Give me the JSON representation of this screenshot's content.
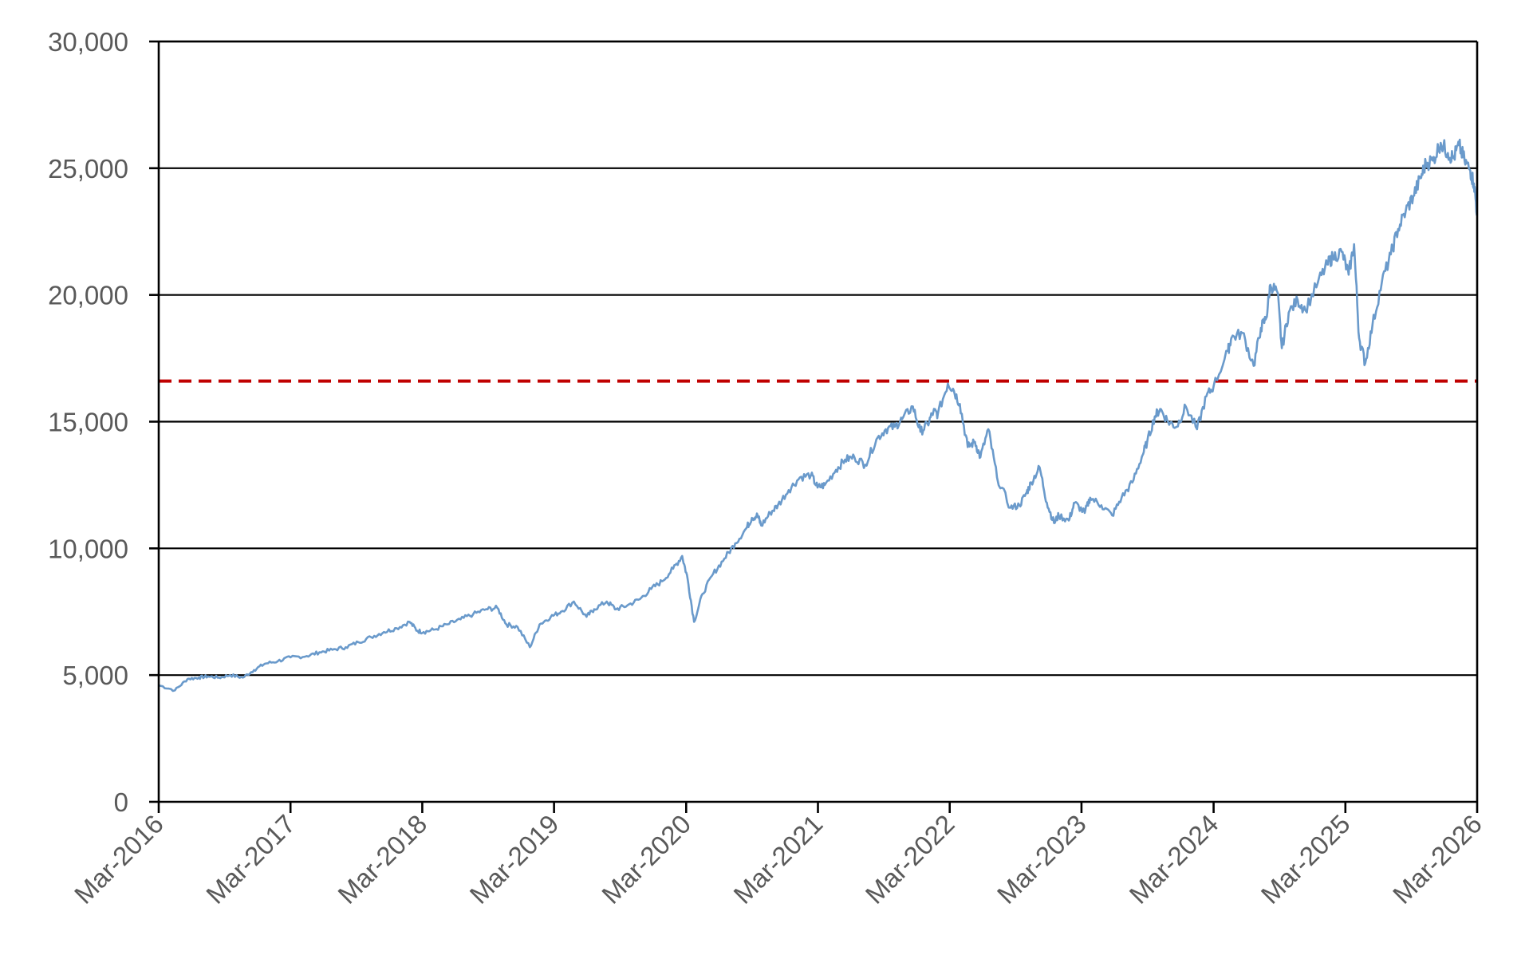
{
  "chart_data": {
    "type": "line",
    "title": "",
    "xlabel": "",
    "ylabel": "",
    "xlim": [
      "2016-03-01",
      "2026-03-01"
    ],
    "ylim": [
      0,
      30000
    ],
    "y_ticks": [
      {
        "value": 0,
        "label": "0"
      },
      {
        "value": 5000,
        "label": "5,000"
      },
      {
        "value": 10000,
        "label": "10,000"
      },
      {
        "value": 15000,
        "label": "15,000"
      },
      {
        "value": 20000,
        "label": "20,000"
      },
      {
        "value": 25000,
        "label": "25,000"
      },
      {
        "value": 30000,
        "label": "30,000"
      }
    ],
    "x_ticks": [
      {
        "value": "2016-03-01",
        "label": "Mar-2016"
      },
      {
        "value": "2017-03-01",
        "label": "Mar-2017"
      },
      {
        "value": "2018-03-01",
        "label": "Mar-2018"
      },
      {
        "value": "2019-03-01",
        "label": "Mar-2019"
      },
      {
        "value": "2020-03-01",
        "label": "Mar-2020"
      },
      {
        "value": "2021-03-01",
        "label": "Mar-2021"
      },
      {
        "value": "2022-03-01",
        "label": "Mar-2022"
      },
      {
        "value": "2023-03-01",
        "label": "Mar-2023"
      },
      {
        "value": "2024-03-01",
        "label": "Mar-2024"
      },
      {
        "value": "2025-03-01",
        "label": "Mar-2025"
      },
      {
        "value": "2026-03-01",
        "label": "Mar-2026"
      }
    ],
    "grid": true,
    "series": [
      {
        "color": "#6a9acb",
        "x": [
          "2016-03-01",
          "2016-04-15",
          "2016-05-20",
          "2016-06-20",
          "2016-07-15",
          "2016-08-15",
          "2016-09-15",
          "2016-10-20",
          "2016-11-20",
          "2016-12-20",
          "2017-01-25",
          "2017-03-01",
          "2017-04-15",
          "2017-05-20",
          "2017-06-25",
          "2017-08-01",
          "2017-09-05",
          "2017-10-10",
          "2017-11-15",
          "2017-12-20",
          "2018-01-25",
          "2018-02-15",
          "2018-03-05",
          "2018-04-05",
          "2018-05-10",
          "2018-06-15",
          "2018-07-20",
          "2018-08-25",
          "2018-09-25",
          "2018-10-20",
          "2018-11-20",
          "2018-12-24",
          "2019-01-20",
          "2019-02-20",
          "2019-03-20",
          "2019-04-25",
          "2019-05-30",
          "2019-06-20",
          "2019-07-25",
          "2019-08-20",
          "2019-09-20",
          "2019-10-25",
          "2019-11-25",
          "2019-12-25",
          "2020-01-25",
          "2020-02-19",
          "2020-03-05",
          "2020-03-23",
          "2020-04-15",
          "2020-05-15",
          "2020-06-15",
          "2020-07-15",
          "2020-08-15",
          "2020-08-30",
          "2020-09-15",
          "2020-09-25",
          "2020-10-20",
          "2020-11-10",
          "2020-12-10",
          "2021-01-10",
          "2021-02-10",
          "2021-02-28",
          "2021-03-20",
          "2021-04-20",
          "2021-05-15",
          "2021-06-10",
          "2021-07-10",
          "2021-08-10",
          "2021-09-05",
          "2021-09-30",
          "2021-10-20",
          "2021-11-19",
          "2021-12-10",
          "2021-12-30",
          "2022-01-15",
          "2022-01-27",
          "2022-02-24",
          "2022-03-10",
          "2022-03-29",
          "2022-04-20",
          "2022-05-10",
          "2022-05-25",
          "2022-06-16",
          "2022-07-10",
          "2022-08-16",
          "2022-09-10",
          "2022-09-30",
          "2022-10-13",
          "2022-11-05",
          "2022-11-25",
          "2022-12-15",
          "2022-12-28",
          "2023-01-25",
          "2023-02-10",
          "2023-03-10",
          "2023-03-25",
          "2023-04-25",
          "2023-05-25",
          "2023-06-20",
          "2023-07-20",
          "2023-08-15",
          "2023-08-30",
          "2023-09-20",
          "2023-10-05",
          "2023-10-27",
          "2023-11-20",
          "2023-12-15",
          "2024-01-15",
          "2024-02-10",
          "2024-03-01",
          "2024-04-10",
          "2024-04-19",
          "2024-05-20",
          "2024-06-20",
          "2024-07-10",
          "2024-07-25",
          "2024-08-05",
          "2024-08-25",
          "2024-09-06",
          "2024-09-25",
          "2024-10-20",
          "2024-11-10",
          "2024-12-15",
          "2025-01-10",
          "2025-01-25",
          "2025-02-19",
          "2025-03-10",
          "2025-03-25",
          "2025-04-08",
          "2025-04-25",
          "2025-05-15",
          "2025-06-10",
          "2025-07-05",
          "2025-07-25",
          "2025-08-15",
          "2025-09-05",
          "2025-09-25",
          "2025-10-10",
          "2025-10-29",
          "2025-11-20",
          "2025-12-10",
          "2025-12-25",
          "2026-01-10",
          "2026-01-25",
          "2026-02-10",
          "2026-02-20",
          "2026-03-01"
        ],
        "values": [
          4600,
          4400,
          4850,
          4900,
          4950,
          4900,
          5000,
          4900,
          5200,
          5450,
          5550,
          5700,
          5750,
          5900,
          6000,
          6100,
          6300,
          6500,
          6700,
          6850,
          7100,
          6750,
          6700,
          6800,
          7000,
          7200,
          7400,
          7600,
          7650,
          7000,
          6900,
          6100,
          7000,
          7300,
          7500,
          7900,
          7300,
          7600,
          7900,
          7600,
          7750,
          8000,
          8400,
          8700,
          9200,
          9700,
          8800,
          7100,
          8200,
          9000,
          9600,
          10200,
          10800,
          11200,
          11300,
          10900,
          11400,
          11700,
          12300,
          12800,
          12900,
          12400,
          12500,
          13100,
          13500,
          13600,
          13300,
          14300,
          14700,
          14800,
          15100,
          15600,
          14600,
          14900,
          15400,
          15300,
          16500,
          16300,
          15700,
          14000,
          14200,
          13600,
          14700,
          12800,
          11600,
          11700,
          12200,
          12600,
          13200,
          11800,
          11000,
          11300,
          11100,
          11800,
          11400,
          12000,
          11700,
          11300,
          12000,
          12600,
          13600,
          14200,
          15200,
          15500,
          15000,
          14800,
          15600,
          14700,
          16000,
          16400,
          17800,
          18300,
          18500,
          17200,
          18700,
          19100,
          20400,
          20100,
          17900,
          19300,
          19800,
          19400,
          20500,
          21200,
          21500,
          21700,
          20800,
          22000,
          18300,
          17300,
          18800,
          20500,
          21600,
          22600,
          23300,
          23900,
          24600,
          25200,
          25300,
          26000,
          25600,
          25400,
          25900,
          25300,
          24900,
          24400,
          23200
        ]
      }
    ],
    "reference_lines": [
      {
        "axis": "y",
        "value": 16600,
        "color": "#c00000",
        "style": "dashed"
      }
    ]
  }
}
